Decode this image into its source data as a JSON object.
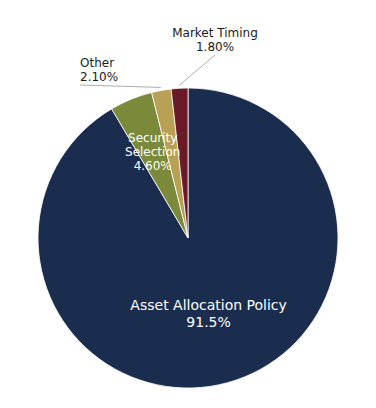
{
  "chart_data": {
    "type": "pie",
    "categories": [
      "Asset Allocation Policy",
      "Security Selection",
      "Other",
      "Market Timing"
    ],
    "values": [
      91.5,
      4.6,
      2.1,
      1.8
    ],
    "value_labels": [
      "91.5%",
      "4.60%",
      "2.10%",
      "1.80%"
    ],
    "colors": [
      "#1b2d4f",
      "#7a8a3a",
      "#b8a055",
      "#6b1a28"
    ],
    "data_labels": true
  }
}
